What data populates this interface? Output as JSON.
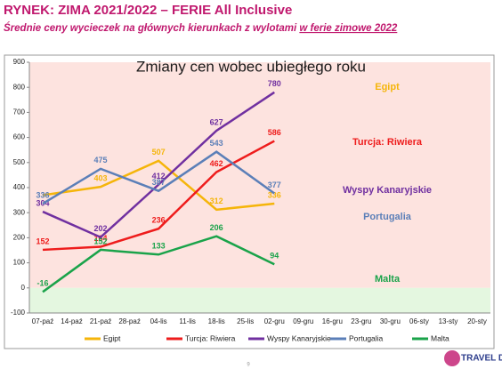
{
  "header": {
    "title": "RYNEK: ZIMA 2021/2022 – FERIE All Inclusive",
    "subtitle": "Średnie ceny wycieczek na głównych kierunkach z wylotami",
    "subtitle_emphasis": "w ferie zimowe 2022"
  },
  "chart_data": {
    "type": "line",
    "title": "Zmiany cen wobec ubiegłego roku",
    "categories": [
      "07-paź",
      "14-paź",
      "21-paź",
      "28-paź",
      "04-lis",
      "11-lis",
      "18-lis",
      "25-lis",
      "02-gru",
      "09-gru",
      "16-gru",
      "23-gru",
      "30-gru",
      "06-sty",
      "13-sty",
      "20-sty"
    ],
    "ylim": [
      -100,
      900
    ],
    "yticks": [
      -100,
      0,
      100,
      200,
      300,
      400,
      500,
      600,
      700,
      800,
      900
    ],
    "grid": false,
    "legend": "bottom",
    "series": [
      {
        "name": "Egipt",
        "color": "#f5b50a",
        "x": [
          "07-paź",
          "21-paź",
          "04-lis",
          "18-lis",
          "02-gru"
        ],
        "values": [
          370,
          403,
          507,
          312,
          336
        ],
        "value_labels": [
          null,
          "403",
          "507",
          "312",
          "336"
        ]
      },
      {
        "name": "Turcja: Riwiera",
        "color": "#ee1c1c",
        "x": [
          "07-paź",
          "21-paź",
          "04-lis",
          "18-lis",
          "02-gru"
        ],
        "values": [
          152,
          164,
          236,
          462,
          586
        ],
        "value_labels": [
          "152",
          "164",
          "236",
          "462",
          "586"
        ]
      },
      {
        "name": "Wyspy Kanaryjskie",
        "color": "#7030a0",
        "x": [
          "07-paź",
          "21-paź",
          "04-lis",
          "18-lis",
          "02-gru"
        ],
        "values": [
          304,
          202,
          412,
          627,
          780
        ],
        "value_labels": [
          "304",
          "202",
          "412",
          "627",
          "780"
        ]
      },
      {
        "name": "Portugalia",
        "color": "#5b7fb8",
        "x": [
          "07-paź",
          "21-paź",
          "04-lis",
          "18-lis",
          "02-gru"
        ],
        "values": [
          336,
          475,
          387,
          543,
          377
        ],
        "value_labels": [
          "336",
          "475",
          "387",
          "543",
          "377"
        ]
      },
      {
        "name": "Malta",
        "color": "#1aa34a",
        "x": [
          "07-paź",
          "21-paź",
          "04-lis",
          "18-lis",
          "02-gru"
        ],
        "values": [
          -16,
          152,
          133,
          206,
          94
        ],
        "value_labels": [
          "-16",
          "152",
          "133",
          "206",
          "94"
        ]
      }
    ]
  },
  "footer": {
    "page": "9",
    "logo": "TRAVEL DATA"
  }
}
